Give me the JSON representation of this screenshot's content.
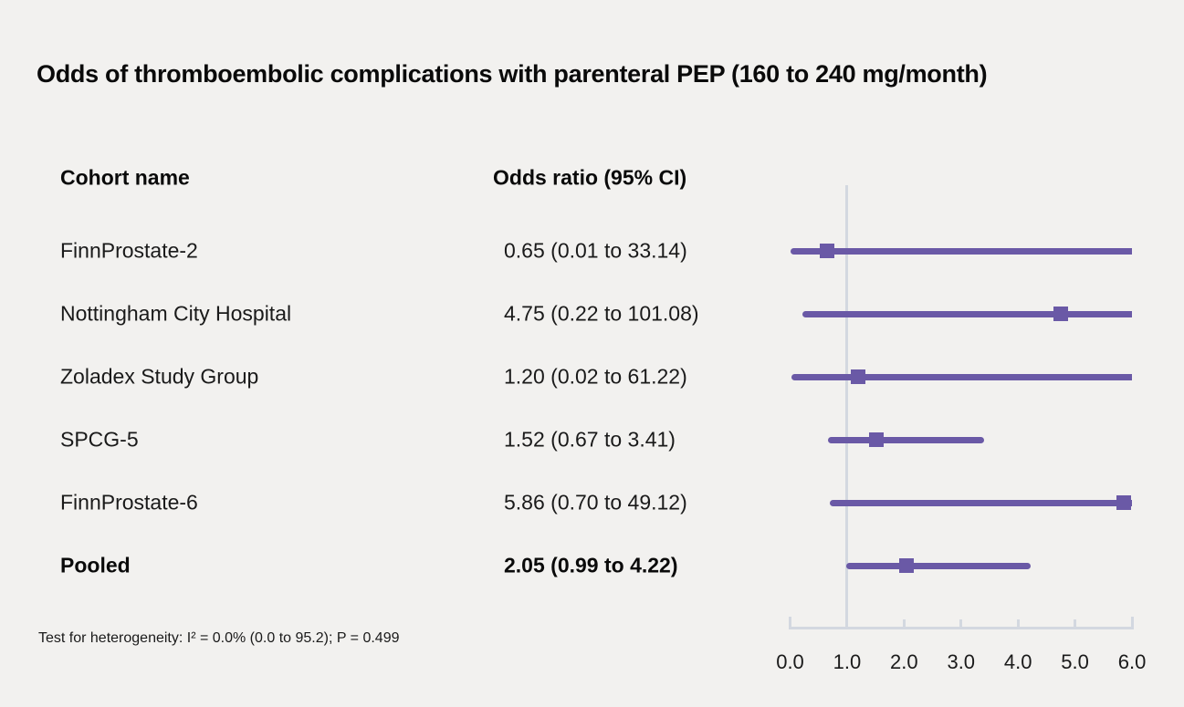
{
  "title": "Odds of thromboembolic complications with parenteral PEP (160 to 240 mg/month)",
  "columns": {
    "cohort": "Cohort name",
    "odds_ratio": "Odds ratio (95% CI)"
  },
  "footnote": "Test for heterogeneity: I² = 0.0% (0.0 to 95.2); P = 0.499",
  "colors": {
    "background": "#f2f1ef",
    "accent_purple": "#6a59a6",
    "axis_gray": "#d3d8e0",
    "text": "#1a1a1a",
    "text_strong": "#0a0a0a"
  },
  "chart_data": {
    "type": "forest",
    "title": "Odds of thromboembolic complications with parenteral PEP (160 to 240 mg/month)",
    "xlabel": "",
    "ylabel": "",
    "axis": {
      "min": 0.0,
      "max": 6.0,
      "tick_values": [
        0,
        1,
        2,
        3,
        4,
        5,
        6
      ],
      "tick_labels": [
        "0.0",
        "1.0",
        "2.0",
        "3.0",
        "4.0",
        "5.0",
        "6.0"
      ],
      "reference_value": 1.0,
      "grid": false
    },
    "studies": [
      {
        "name": "FinnProstate-2",
        "or_text": "0.65 (0.01 to 33.14)",
        "or": 0.65,
        "ci_low": 0.01,
        "ci_high": 33.14,
        "bold": false
      },
      {
        "name": "Nottingham City Hospital",
        "or_text": "4.75 (0.22 to 101.08)",
        "or": 4.75,
        "ci_low": 0.22,
        "ci_high": 101.08,
        "bold": false
      },
      {
        "name": "Zoladex Study Group",
        "or_text": "1.20 (0.02 to 61.22)",
        "or": 1.2,
        "ci_low": 0.02,
        "ci_high": 61.22,
        "bold": false
      },
      {
        "name": "SPCG-5",
        "or_text": "1.52 (0.67 to 3.41)",
        "or": 1.52,
        "ci_low": 0.67,
        "ci_high": 3.41,
        "bold": false
      },
      {
        "name": "FinnProstate-6",
        "or_text": "5.86 (0.70 to 49.12)",
        "or": 5.86,
        "ci_low": 0.7,
        "ci_high": 49.12,
        "bold": false
      },
      {
        "name": "Pooled",
        "or_text": "2.05 (0.99 to 4.22)",
        "or": 2.05,
        "ci_low": 0.99,
        "ci_high": 4.22,
        "bold": true
      }
    ]
  }
}
